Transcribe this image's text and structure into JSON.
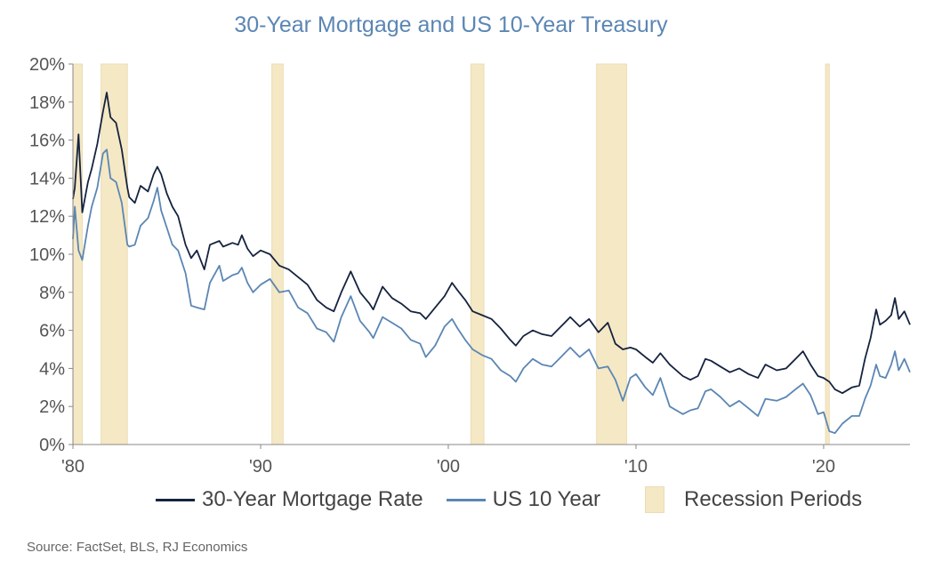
{
  "chart_data": {
    "type": "line",
    "title": "30-Year Mortgage and US 10-Year Treasury",
    "xlabel": "",
    "ylabel": "",
    "xlim": [
      1980,
      2024.6
    ],
    "ylim": [
      0,
      20
    ],
    "y_ticks": [
      "0%",
      "2%",
      "4%",
      "6%",
      "8%",
      "10%",
      "12%",
      "14%",
      "16%",
      "18%",
      "20%"
    ],
    "x_ticks": [
      {
        "value": 1980,
        "label": "'80"
      },
      {
        "value": 1990,
        "label": "'90"
      },
      {
        "value": 2000,
        "label": "'00"
      },
      {
        "value": 2010,
        "label": "'10"
      },
      {
        "value": 2020,
        "label": "'20"
      }
    ],
    "grid": false,
    "legend_position": "bottom",
    "recessions": [
      [
        1980.0,
        1980.5
      ],
      [
        1981.5,
        1982.9
      ],
      [
        1990.6,
        1991.2
      ],
      [
        2001.2,
        2001.9
      ],
      [
        2007.9,
        2009.5
      ],
      [
        2020.1,
        2020.3
      ]
    ],
    "series": [
      {
        "name": "30-Year Mortgage Rate",
        "color": "#15233f",
        "x": [
          1980.0,
          1980.1,
          1980.3,
          1980.5,
          1980.8,
          1981.0,
          1981.3,
          1981.6,
          1981.8,
          1982.0,
          1982.3,
          1982.6,
          1982.9,
          1983.0,
          1983.3,
          1983.6,
          1984.0,
          1984.3,
          1984.5,
          1984.7,
          1985.0,
          1985.3,
          1985.6,
          1986.0,
          1986.3,
          1986.6,
          1987.0,
          1987.3,
          1987.8,
          1988.0,
          1988.5,
          1988.8,
          1989.0,
          1989.3,
          1989.6,
          1990.0,
          1990.5,
          1991.0,
          1991.5,
          1992.0,
          1992.5,
          1993.0,
          1993.5,
          1993.9,
          1994.3,
          1994.8,
          1995.3,
          1995.8,
          1996.0,
          1996.5,
          1997.0,
          1997.5,
          1998.0,
          1998.5,
          1998.8,
          1999.3,
          1999.8,
          2000.2,
          2000.5,
          2000.9,
          2001.3,
          2001.8,
          2002.3,
          2002.8,
          2003.3,
          2003.6,
          2004.0,
          2004.5,
          2005.0,
          2005.5,
          2006.0,
          2006.5,
          2007.0,
          2007.5,
          2008.0,
          2008.5,
          2008.9,
          2009.3,
          2009.7,
          2010.0,
          2010.5,
          2010.9,
          2011.3,
          2011.8,
          2012.5,
          2012.9,
          2013.3,
          2013.7,
          2014.0,
          2014.5,
          2015.0,
          2015.5,
          2016.0,
          2016.5,
          2016.9,
          2017.5,
          2018.0,
          2018.5,
          2018.9,
          2019.3,
          2019.7,
          2020.0,
          2020.3,
          2020.6,
          2021.0,
          2021.5,
          2021.9,
          2022.2,
          2022.5,
          2022.8,
          2023.0,
          2023.3,
          2023.6,
          2023.8,
          2024.0,
          2024.3,
          2024.6
        ],
        "values": [
          12.9,
          13.5,
          16.3,
          12.2,
          13.8,
          14.5,
          15.8,
          17.5,
          18.5,
          17.2,
          16.9,
          15.5,
          13.5,
          13.0,
          12.7,
          13.6,
          13.3,
          14.2,
          14.6,
          14.2,
          13.2,
          12.5,
          12.0,
          10.5,
          9.8,
          10.2,
          9.2,
          10.5,
          10.7,
          10.4,
          10.6,
          10.5,
          11.0,
          10.3,
          9.9,
          10.2,
          10.0,
          9.4,
          9.2,
          8.8,
          8.4,
          7.6,
          7.2,
          7.0,
          8.0,
          9.1,
          8.0,
          7.4,
          7.1,
          8.3,
          7.7,
          7.4,
          7.0,
          6.9,
          6.6,
          7.2,
          7.8,
          8.5,
          8.1,
          7.6,
          7.0,
          6.8,
          6.6,
          6.1,
          5.5,
          5.2,
          5.7,
          6.0,
          5.8,
          5.7,
          6.2,
          6.7,
          6.2,
          6.6,
          5.9,
          6.4,
          5.3,
          5.0,
          5.1,
          5.0,
          4.6,
          4.3,
          4.8,
          4.2,
          3.6,
          3.4,
          3.6,
          4.5,
          4.4,
          4.1,
          3.8,
          4.0,
          3.7,
          3.5,
          4.2,
          3.9,
          4.0,
          4.5,
          4.9,
          4.2,
          3.6,
          3.5,
          3.3,
          2.9,
          2.7,
          3.0,
          3.1,
          4.5,
          5.6,
          7.1,
          6.3,
          6.5,
          6.8,
          7.7,
          6.6,
          7.0,
          6.3
        ]
      },
      {
        "name": "US 10 Year",
        "color": "#5b86b4",
        "x": [
          1980.0,
          1980.1,
          1980.3,
          1980.5,
          1980.8,
          1981.0,
          1981.3,
          1981.6,
          1981.8,
          1982.0,
          1982.3,
          1982.6,
          1982.9,
          1983.0,
          1983.3,
          1983.6,
          1984.0,
          1984.3,
          1984.5,
          1984.7,
          1985.0,
          1985.3,
          1985.6,
          1986.0,
          1986.3,
          1986.6,
          1987.0,
          1987.3,
          1987.8,
          1988.0,
          1988.5,
          1988.8,
          1989.0,
          1989.3,
          1989.6,
          1990.0,
          1990.5,
          1991.0,
          1991.5,
          1992.0,
          1992.5,
          1993.0,
          1993.5,
          1993.9,
          1994.3,
          1994.8,
          1995.3,
          1995.8,
          1996.0,
          1996.5,
          1997.0,
          1997.5,
          1998.0,
          1998.5,
          1998.8,
          1999.3,
          1999.8,
          2000.2,
          2000.5,
          2000.9,
          2001.3,
          2001.8,
          2002.3,
          2002.8,
          2003.3,
          2003.6,
          2004.0,
          2004.5,
          2005.0,
          2005.5,
          2006.0,
          2006.5,
          2007.0,
          2007.5,
          2008.0,
          2008.5,
          2008.9,
          2009.3,
          2009.7,
          2010.0,
          2010.5,
          2010.9,
          2011.3,
          2011.8,
          2012.5,
          2012.9,
          2013.3,
          2013.7,
          2014.0,
          2014.5,
          2015.0,
          2015.5,
          2016.0,
          2016.5,
          2016.9,
          2017.5,
          2018.0,
          2018.5,
          2018.9,
          2019.3,
          2019.7,
          2020.0,
          2020.3,
          2020.6,
          2021.0,
          2021.5,
          2021.9,
          2022.2,
          2022.5,
          2022.8,
          2023.0,
          2023.3,
          2023.6,
          2023.8,
          2024.0,
          2024.3,
          2024.6
        ],
        "values": [
          10.8,
          12.5,
          10.2,
          9.7,
          11.5,
          12.5,
          13.5,
          15.3,
          15.5,
          14.0,
          13.8,
          12.7,
          10.5,
          10.4,
          10.5,
          11.5,
          11.9,
          12.8,
          13.5,
          12.3,
          11.4,
          10.5,
          10.2,
          9.0,
          7.3,
          7.2,
          7.1,
          8.5,
          9.4,
          8.6,
          8.9,
          9.0,
          9.3,
          8.5,
          8.0,
          8.4,
          8.7,
          8.0,
          8.1,
          7.2,
          6.9,
          6.1,
          5.9,
          5.4,
          6.7,
          7.8,
          6.5,
          5.9,
          5.6,
          6.7,
          6.4,
          6.1,
          5.5,
          5.3,
          4.6,
          5.2,
          6.2,
          6.6,
          6.1,
          5.5,
          5.0,
          4.7,
          4.5,
          3.9,
          3.6,
          3.3,
          4.0,
          4.5,
          4.2,
          4.1,
          4.6,
          5.1,
          4.6,
          5.0,
          4.0,
          4.1,
          3.4,
          2.3,
          3.5,
          3.7,
          3.0,
          2.6,
          3.5,
          2.0,
          1.6,
          1.8,
          1.9,
          2.8,
          2.9,
          2.5,
          2.0,
          2.3,
          1.9,
          1.5,
          2.4,
          2.3,
          2.5,
          2.9,
          3.2,
          2.6,
          1.6,
          1.7,
          0.7,
          0.6,
          1.1,
          1.5,
          1.5,
          2.4,
          3.1,
          4.2,
          3.6,
          3.5,
          4.2,
          4.9,
          3.9,
          4.5,
          3.8
        ]
      }
    ]
  },
  "legend": {
    "mortgage_label": "30-Year Mortgage Rate",
    "treasury_label": "US 10 Year",
    "recession_label": "Recession Periods",
    "recession_color": "#f5e8c4"
  },
  "source": "Source: FactSet, BLS,  RJ Economics"
}
